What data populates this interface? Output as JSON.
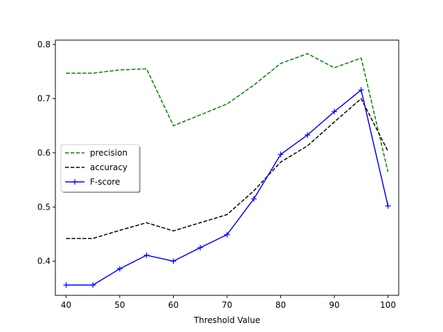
{
  "chart_data": {
    "type": "line",
    "title": "",
    "xlabel": "Threshold Value",
    "ylabel": "",
    "xlim": [
      38,
      102
    ],
    "ylim": [
      0.337,
      0.808
    ],
    "xticks": [
      40,
      50,
      60,
      70,
      80,
      90,
      100
    ],
    "yticks": [
      0.4,
      0.5,
      0.6,
      0.7,
      0.8
    ],
    "x": [
      40,
      45,
      50,
      55,
      60,
      65,
      70,
      75,
      80,
      85,
      90,
      95,
      100
    ],
    "grid": false,
    "legend_position": "center-left",
    "series": [
      {
        "name": "precision",
        "color": "#008000",
        "linestyle": "dashed",
        "marker": "none",
        "values": [
          0.747,
          0.747,
          0.753,
          0.755,
          0.65,
          0.67,
          0.69,
          0.725,
          0.765,
          0.783,
          0.757,
          0.775,
          0.565
        ]
      },
      {
        "name": "accuracy",
        "color": "#000000",
        "linestyle": "dashed",
        "marker": "none",
        "values": [
          0.442,
          0.442,
          0.457,
          0.471,
          0.456,
          0.471,
          0.486,
          0.53,
          0.583,
          0.613,
          0.657,
          0.7,
          0.603
        ]
      },
      {
        "name": "F-score",
        "color": "#0000ff",
        "linestyle": "solid",
        "marker": "plus",
        "values": [
          0.356,
          0.356,
          0.386,
          0.411,
          0.4,
          0.425,
          0.449,
          0.515,
          0.597,
          0.633,
          0.676,
          0.716,
          0.502
        ]
      }
    ]
  }
}
